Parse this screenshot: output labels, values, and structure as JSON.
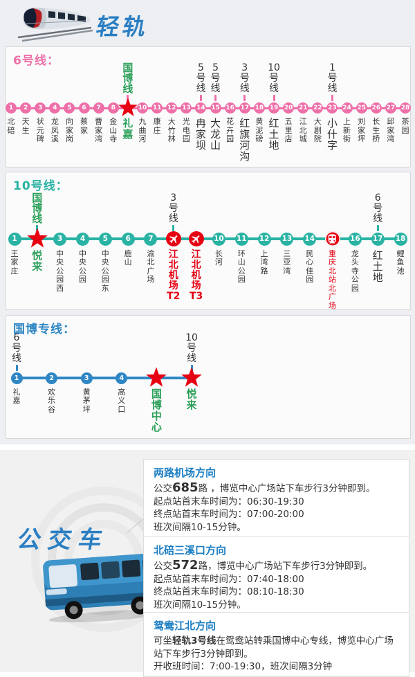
{
  "colors": {
    "line6_pink": "#ee6fa8",
    "line10_teal": "#2ab3a4",
    "expo_blue": "#2e86c4",
    "transfer_green": "#2ca05a",
    "highlight_red": "#e60012",
    "box_title_blue": "#1b7ec2",
    "brush_blue": "#2b7fc3",
    "text": "#333333"
  },
  "icons": {
    "train_illustration": "train-icon",
    "bus_illustration": "bus-icon",
    "star_marker": "star-icon",
    "airport_marker": "airplane-icon",
    "railway_marker": "railway-station-icon"
  },
  "header": {
    "rail_title": "轻轨"
  },
  "lines": [
    {
      "id": "line6",
      "title": "6号线：",
      "color": "#ee6fa8",
      "stations": [
        {
          "n": "1",
          "name": "北碚"
        },
        {
          "n": "2",
          "name": "天生"
        },
        {
          "n": "3",
          "name": "状元碑"
        },
        {
          "n": "4",
          "name": "龙凤溪"
        },
        {
          "n": "5",
          "name": "向家岗"
        },
        {
          "n": "6",
          "name": "蔡家"
        },
        {
          "n": "7",
          "name": "曹家湾"
        },
        {
          "n": "8",
          "name": "金山寺"
        },
        {
          "n": "9",
          "name": "礼嘉",
          "marker": "star",
          "above": "国博线",
          "above_green": true,
          "emph": "green"
        },
        {
          "n": "10",
          "name": "九曲河"
        },
        {
          "n": "11",
          "name": "康庄"
        },
        {
          "n": "12",
          "name": "大竹林"
        },
        {
          "n": "13",
          "name": "光电园"
        },
        {
          "n": "14",
          "name": "冉家坝",
          "above": "5号线",
          "emph": "big"
        },
        {
          "n": "15",
          "name": "大龙山",
          "above": "5号线",
          "emph": "big"
        },
        {
          "n": "16",
          "name": "花卉园"
        },
        {
          "n": "17",
          "name": "红旗河沟",
          "above": "3号线",
          "emph": "big"
        },
        {
          "n": "18",
          "name": "黄泥磅"
        },
        {
          "n": "19",
          "name": "红土地",
          "above": "10号线",
          "emph": "big"
        },
        {
          "n": "20",
          "name": "五里店"
        },
        {
          "n": "21",
          "name": "江北城"
        },
        {
          "n": "22",
          "name": "大剧院"
        },
        {
          "n": "23",
          "name": "小什字",
          "above": "1号线",
          "emph": "big"
        },
        {
          "n": "24",
          "name": "上新街"
        },
        {
          "n": "25",
          "name": "刘家坪"
        },
        {
          "n": "26",
          "name": "长生桥"
        },
        {
          "n": "27",
          "name": "邱家湾"
        },
        {
          "n": "28",
          "name": "茶园"
        }
      ]
    },
    {
      "id": "line10",
      "title": "10号线：",
      "color": "#2ab3a4",
      "stations": [
        {
          "n": "1",
          "name": "王家庄"
        },
        {
          "n": "2",
          "name": "悦来",
          "marker": "star",
          "above": "国博线",
          "above_green": true,
          "emph": "green"
        },
        {
          "n": "3",
          "name": "中央公园西"
        },
        {
          "n": "4",
          "name": "中央公园"
        },
        {
          "n": "5",
          "name": "中央公园东"
        },
        {
          "n": "6",
          "name": "鹿山"
        },
        {
          "n": "7",
          "name": "渝北广场"
        },
        {
          "n": "8",
          "name": "江北机场T2",
          "marker": "airport",
          "above": "3号线",
          "emph": "red"
        },
        {
          "n": "9",
          "name": "江北机场T3",
          "marker": "airport",
          "emph": "red"
        },
        {
          "n": "10",
          "name": "长河"
        },
        {
          "n": "11",
          "name": "环山公园"
        },
        {
          "n": "12",
          "name": "上湾路"
        },
        {
          "n": "13",
          "name": "三亚湾"
        },
        {
          "n": "14",
          "name": "民心佳园"
        },
        {
          "n": "15",
          "name": "重庆北站北广场",
          "marker": "railway",
          "emph": "red_sm"
        },
        {
          "n": "16",
          "name": "龙头寺公园"
        },
        {
          "n": "17",
          "name": "红土地",
          "above": "6号线",
          "emph": "big"
        },
        {
          "n": "18",
          "name": "鲤鱼池"
        }
      ]
    },
    {
      "id": "expo",
      "title": "国博专线：",
      "color": "#2e86c4",
      "stations": [
        {
          "n": "1",
          "name": "礼嘉",
          "above": "6号线"
        },
        {
          "n": "2",
          "name": "欢乐谷"
        },
        {
          "n": "3",
          "name": "黄茅坪"
        },
        {
          "n": "4",
          "name": "高义口"
        },
        {
          "n": "",
          "name": "国博中心",
          "marker": "star",
          "emph": "green"
        },
        {
          "n": "",
          "name": "悦来",
          "marker": "star",
          "above": "10号线",
          "emph": "green"
        }
      ]
    }
  ],
  "bus": {
    "title": "公交车",
    "boxes": [
      {
        "title": "两路机场方向",
        "lines": [
          [
            {
              "t": "公交"
            },
            {
              "t": "685",
              "b": 1,
              "lg": 1
            },
            {
              "t": "路 ，博览中心广场站下车步行3分钟即到。"
            }
          ],
          [
            {
              "t": "起点站首末车时间为：06:30-19:30"
            }
          ],
          [
            {
              "t": "终点站首末车时间为：07:00-20:00"
            }
          ],
          [
            {
              "t": "班次间隔10-15分钟。"
            }
          ]
        ]
      },
      {
        "title": "北碚三溪口方向",
        "lines": [
          [
            {
              "t": "公交"
            },
            {
              "t": "572",
              "b": 1,
              "lg": 1
            },
            {
              "t": "路，博览中心广场站下车步行3分钟即到。"
            }
          ],
          [
            {
              "t": "起点站首末车时间为：07:40-18:00"
            }
          ],
          [
            {
              "t": "终点站首末车时间为：08:10-18:30"
            }
          ],
          [
            {
              "t": "班次间隔10-15分钟。"
            }
          ]
        ]
      },
      {
        "title": "鸳鸯江北方向",
        "lines": [
          [
            {
              "t": "可坐"
            },
            {
              "t": "轻轨3号线",
              "b": 1
            },
            {
              "t": "在鸳鸯站转乘国博中心专线，博览中心广场站下车步行3分钟即到。"
            }
          ],
          [
            {
              "t": "开收班时间：7:00-19:30，班次间隔3分钟"
            }
          ]
        ]
      }
    ]
  }
}
